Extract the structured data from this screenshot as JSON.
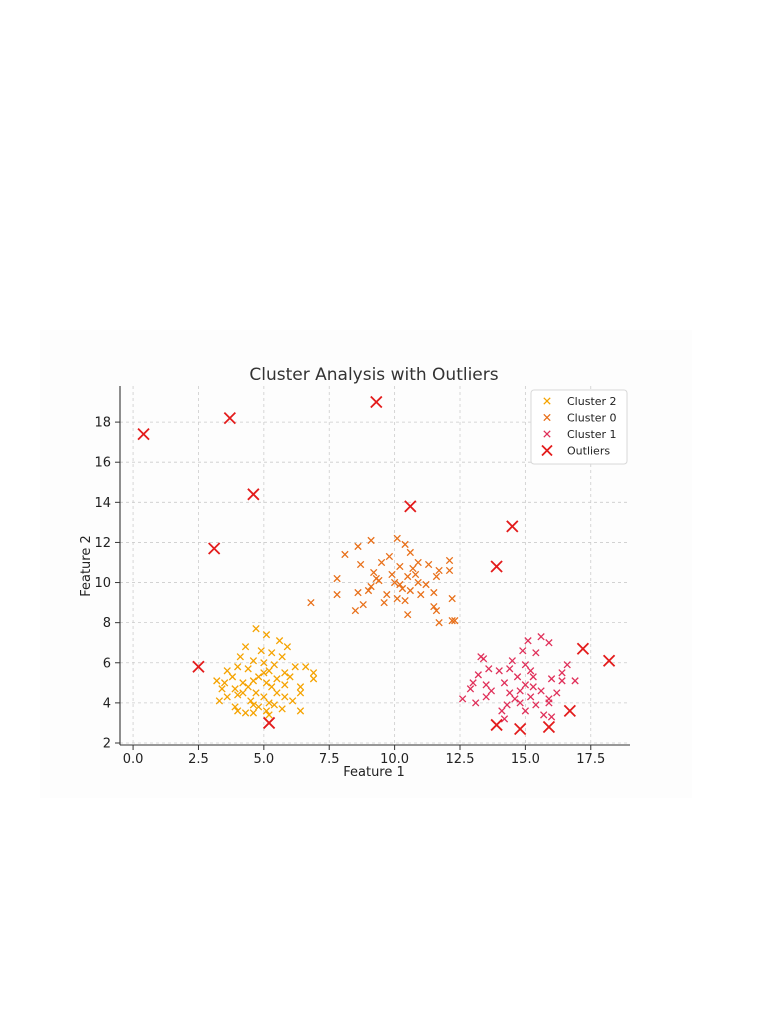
{
  "chart_data": {
    "type": "scatter",
    "title": "Cluster Analysis with Outliers",
    "xlabel": "Feature 1",
    "ylabel": "Feature 2",
    "xlim": [
      -0.5,
      19
    ],
    "ylim": [
      1.9,
      19.8
    ],
    "xticks": [
      "0.0",
      "2.5",
      "5.0",
      "7.5",
      "10.0",
      "12.5",
      "15.0",
      "17.5"
    ],
    "xtick_values": [
      0,
      2.5,
      5,
      7.5,
      10,
      12.5,
      15,
      17.5
    ],
    "yticks": [
      "2",
      "4",
      "6",
      "8",
      "10",
      "12",
      "14",
      "16",
      "18"
    ],
    "ytick_values": [
      2,
      4,
      6,
      8,
      10,
      12,
      14,
      16,
      18
    ],
    "grid": true,
    "legend_position": "top-right",
    "series": [
      {
        "name": "Cluster 2",
        "marker": "x",
        "color": "#f5a300",
        "points": [
          [
            4.7,
            7.7
          ],
          [
            5.1,
            7.4
          ],
          [
            4.3,
            6.8
          ],
          [
            5.6,
            7.1
          ],
          [
            5.9,
            6.8
          ],
          [
            4.9,
            6.6
          ],
          [
            5.3,
            6.5
          ],
          [
            4.1,
            6.3
          ],
          [
            5.7,
            6.3
          ],
          [
            6.6,
            5.8
          ],
          [
            6.2,
            5.8
          ],
          [
            4.6,
            6.1
          ],
          [
            5.0,
            6.0
          ],
          [
            5.4,
            5.9
          ],
          [
            4.0,
            5.8
          ],
          [
            3.6,
            5.6
          ],
          [
            4.4,
            5.7
          ],
          [
            5.2,
            5.6
          ],
          [
            5.8,
            5.5
          ],
          [
            6.9,
            5.5
          ],
          [
            3.8,
            5.3
          ],
          [
            4.8,
            5.3
          ],
          [
            5.5,
            5.2
          ],
          [
            6.0,
            5.3
          ],
          [
            3.2,
            5.1
          ],
          [
            3.5,
            5.0
          ],
          [
            4.2,
            5.0
          ],
          [
            4.6,
            5.1
          ],
          [
            5.1,
            5.0
          ],
          [
            6.9,
            5.2
          ],
          [
            3.4,
            4.7
          ],
          [
            3.9,
            4.7
          ],
          [
            4.4,
            4.8
          ],
          [
            5.3,
            4.8
          ],
          [
            5.8,
            4.9
          ],
          [
            6.4,
            4.8
          ],
          [
            4.2,
            4.5
          ],
          [
            4.7,
            4.5
          ],
          [
            5.5,
            4.5
          ],
          [
            6.4,
            4.5
          ],
          [
            3.6,
            4.3
          ],
          [
            4.0,
            4.4
          ],
          [
            5.0,
            4.3
          ],
          [
            5.8,
            4.3
          ],
          [
            3.3,
            4.1
          ],
          [
            4.5,
            4.1
          ],
          [
            5.2,
            4.0
          ],
          [
            6.1,
            4.1
          ],
          [
            3.9,
            3.8
          ],
          [
            4.8,
            3.8
          ],
          [
            5.4,
            3.9
          ],
          [
            5.7,
            3.7
          ],
          [
            4.0,
            3.6
          ],
          [
            4.3,
            3.5
          ],
          [
            4.6,
            3.5
          ],
          [
            5.1,
            3.6
          ],
          [
            6.4,
            3.6
          ],
          [
            5.2,
            3.4
          ],
          [
            4.6,
            3.9
          ],
          [
            5.0,
            5.5
          ]
        ]
      },
      {
        "name": "Cluster 0",
        "marker": "x",
        "color": "#e8701a",
        "points": [
          [
            10.1,
            12.2
          ],
          [
            9.1,
            12.1
          ],
          [
            10.4,
            11.9
          ],
          [
            8.6,
            11.8
          ],
          [
            10.6,
            11.5
          ],
          [
            8.1,
            11.4
          ],
          [
            9.8,
            11.3
          ],
          [
            12.1,
            11.1
          ],
          [
            10.9,
            11.0
          ],
          [
            11.3,
            10.9
          ],
          [
            9.5,
            11.0
          ],
          [
            8.7,
            10.9
          ],
          [
            10.2,
            10.8
          ],
          [
            10.7,
            10.7
          ],
          [
            11.7,
            10.6
          ],
          [
            12.1,
            10.6
          ],
          [
            9.2,
            10.5
          ],
          [
            9.9,
            10.4
          ],
          [
            10.5,
            10.3
          ],
          [
            11.6,
            10.3
          ],
          [
            7.8,
            10.2
          ],
          [
            9.4,
            10.1
          ],
          [
            10.0,
            10.0
          ],
          [
            10.9,
            10.0
          ],
          [
            11.2,
            9.9
          ],
          [
            9.1,
            9.8
          ],
          [
            10.3,
            9.7
          ],
          [
            10.6,
            9.6
          ],
          [
            8.6,
            9.5
          ],
          [
            7.8,
            9.4
          ],
          [
            9.7,
            9.4
          ],
          [
            11.0,
            9.4
          ],
          [
            11.5,
            9.5
          ],
          [
            10.1,
            9.2
          ],
          [
            12.2,
            9.2
          ],
          [
            10.4,
            9.1
          ],
          [
            9.6,
            9.0
          ],
          [
            6.8,
            9.0
          ],
          [
            8.8,
            8.9
          ],
          [
            11.5,
            8.8
          ],
          [
            8.5,
            8.6
          ],
          [
            10.5,
            8.4
          ],
          [
            11.6,
            8.6
          ],
          [
            12.2,
            8.1
          ],
          [
            12.3,
            8.1
          ],
          [
            11.7,
            8.0
          ],
          [
            9.3,
            10.2
          ],
          [
            10.8,
            10.4
          ],
          [
            9.0,
            9.6
          ],
          [
            10.2,
            9.9
          ]
        ]
      },
      {
        "name": "Cluster 1",
        "marker": "x",
        "color": "#e0305a",
        "points": [
          [
            15.6,
            7.3
          ],
          [
            15.1,
            7.1
          ],
          [
            15.9,
            7.0
          ],
          [
            14.9,
            6.6
          ],
          [
            15.4,
            6.5
          ],
          [
            13.3,
            6.3
          ],
          [
            13.4,
            6.2
          ],
          [
            14.5,
            6.1
          ],
          [
            15.0,
            5.9
          ],
          [
            16.6,
            5.9
          ],
          [
            13.6,
            5.7
          ],
          [
            14.0,
            5.6
          ],
          [
            14.4,
            5.7
          ],
          [
            15.2,
            5.6
          ],
          [
            16.4,
            5.5
          ],
          [
            13.2,
            5.4
          ],
          [
            14.7,
            5.3
          ],
          [
            15.3,
            5.3
          ],
          [
            16.0,
            5.2
          ],
          [
            16.9,
            5.1
          ],
          [
            13.0,
            5.0
          ],
          [
            13.5,
            4.9
          ],
          [
            14.2,
            5.0
          ],
          [
            15.0,
            4.9
          ],
          [
            16.4,
            5.1
          ],
          [
            12.9,
            4.7
          ],
          [
            13.7,
            4.6
          ],
          [
            14.4,
            4.5
          ],
          [
            15.6,
            4.6
          ],
          [
            16.2,
            4.5
          ],
          [
            13.5,
            4.3
          ],
          [
            14.6,
            4.2
          ],
          [
            15.2,
            4.3
          ],
          [
            15.9,
            4.2
          ],
          [
            12.6,
            4.2
          ],
          [
            13.1,
            4.0
          ],
          [
            14.3,
            3.9
          ],
          [
            14.8,
            4.0
          ],
          [
            15.4,
            3.9
          ],
          [
            15.9,
            4.0
          ],
          [
            14.1,
            3.6
          ],
          [
            15.0,
            3.6
          ],
          [
            15.7,
            3.4
          ],
          [
            16.0,
            3.3
          ],
          [
            14.2,
            3.2
          ],
          [
            15.3,
            4.8
          ],
          [
            14.8,
            4.6
          ]
        ]
      },
      {
        "name": "Outliers",
        "marker": "x-large",
        "color": "#e31b1b",
        "points": [
          [
            0.4,
            17.4
          ],
          [
            3.7,
            18.2
          ],
          [
            4.6,
            14.4
          ],
          [
            3.1,
            11.7
          ],
          [
            9.3,
            19.0
          ],
          [
            10.6,
            13.8
          ],
          [
            14.5,
            12.8
          ],
          [
            13.9,
            10.8
          ],
          [
            2.5,
            5.8
          ],
          [
            5.2,
            3.0
          ],
          [
            13.9,
            2.9
          ],
          [
            14.8,
            2.7
          ],
          [
            15.9,
            2.8
          ],
          [
            16.7,
            3.6
          ],
          [
            17.2,
            6.7
          ],
          [
            18.2,
            6.1
          ]
        ]
      }
    ]
  }
}
